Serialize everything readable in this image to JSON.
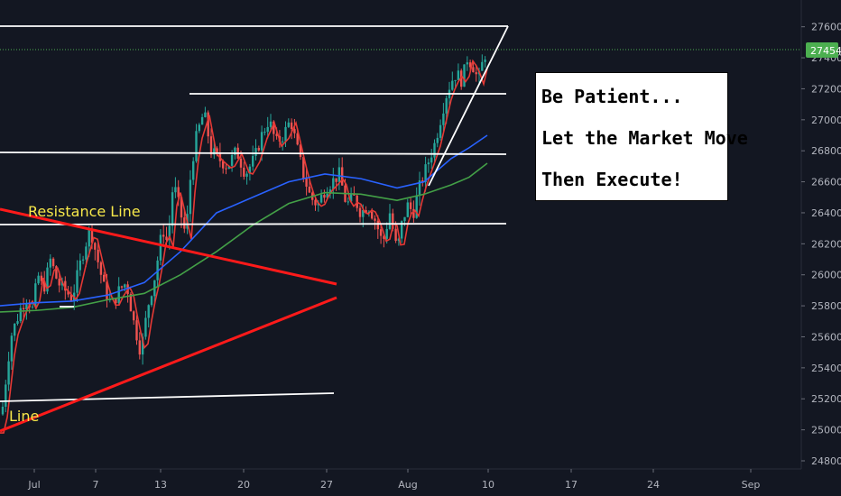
{
  "chart_data": {
    "type": "candlestick",
    "y_ticks": [
      24800,
      25000,
      25200,
      25400,
      25600,
      25800,
      26000,
      26200,
      26400,
      26600,
      26800,
      27000,
      27200,
      27400,
      27600
    ],
    "ylim": [
      24700,
      27800
    ],
    "x_ticks": [
      "Jul",
      "7",
      "13",
      "20",
      "27",
      "Aug",
      "10",
      "17",
      "24",
      "Sep"
    ],
    "last_price": "27454",
    "annotations": {
      "resistance": "Resistance Line",
      "support_fragment": "Line"
    },
    "colors": {
      "up": "#26a69a",
      "down": "#ef5350",
      "ema_fast": "#e53935",
      "ema_mid": "#2962ff",
      "ema_slow": "#43a047",
      "trend_lines": "#ff1a1a",
      "levels": "#ffffff",
      "price_tag": "#4caf50"
    }
  },
  "note": {
    "line1": "Be Patient...",
    "line2": "Let the Market Move",
    "line3": "Then Execute!"
  }
}
